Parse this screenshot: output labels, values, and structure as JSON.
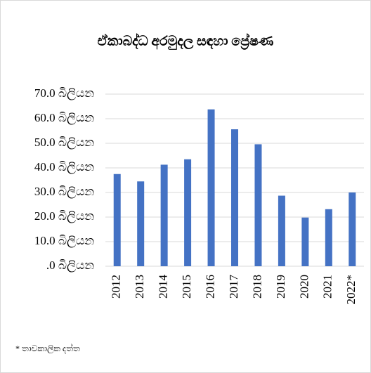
{
  "chart_data": {
    "type": "bar",
    "title": "ඒකාබද්ධ අරමුදල සඳහා ප්‍රේෂණ",
    "categories": [
      "2012",
      "2013",
      "2014",
      "2015",
      "2016",
      "2017",
      "2018",
      "2019",
      "2020",
      "2021",
      "2022*"
    ],
    "values": [
      37.5,
      34.5,
      41.3,
      43.5,
      63.8,
      55.7,
      49.6,
      28.7,
      19.8,
      23.2,
      30.0
    ],
    "color": "#4472c4",
    "ylim": [
      0,
      70
    ],
    "yticks": [
      {
        "value": 0,
        "label": ".0 බිලියන"
      },
      {
        "value": 10,
        "label": "10.0 බිලියන"
      },
      {
        "value": 20,
        "label": "20.0 බිලියන"
      },
      {
        "value": 30,
        "label": "30.0 බිලියන"
      },
      {
        "value": 40,
        "label": "40.0 බිලියන"
      },
      {
        "value": 50,
        "label": "50.0 බිලියන"
      },
      {
        "value": 60,
        "label": "60.0 බිලියන"
      },
      {
        "value": 70,
        "label": "70.0 බිලියන"
      }
    ],
    "grid": true,
    "footnote": "* තාවකාලික දත්ත"
  }
}
